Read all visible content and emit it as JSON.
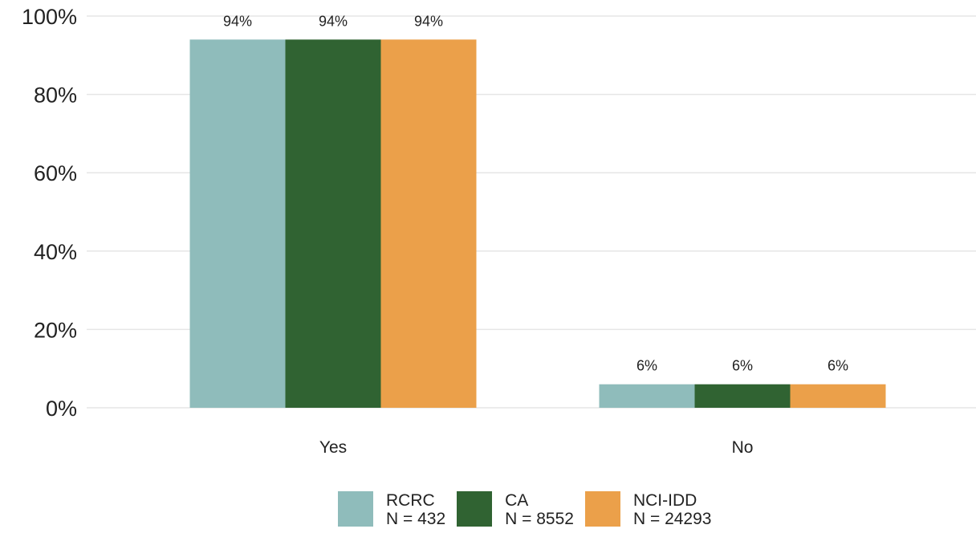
{
  "chart_data": {
    "type": "bar",
    "categories": [
      "Yes",
      "No"
    ],
    "series": [
      {
        "name": "RCRC",
        "n_label": "N = 432",
        "color": "#8fbcbb",
        "values": [
          94,
          6
        ],
        "labels": [
          "94%",
          "6%"
        ]
      },
      {
        "name": "CA",
        "n_label": "N = 8552",
        "color": "#306332",
        "values": [
          94,
          6
        ],
        "labels": [
          "94%",
          "6%"
        ]
      },
      {
        "name": "NCI-IDD",
        "n_label": "N = 24293",
        "color": "#eba04a",
        "values": [
          94,
          6
        ],
        "labels": [
          "94%",
          "6%"
        ]
      }
    ],
    "yticks": [
      0,
      20,
      40,
      60,
      80,
      100
    ],
    "ytick_labels": [
      "0%",
      "20%",
      "40%",
      "60%",
      "80%",
      "100%"
    ],
    "ylim": [
      0,
      100
    ],
    "grid": true,
    "legend_position": "bottom",
    "title": "",
    "xlabel": "",
    "ylabel": ""
  }
}
